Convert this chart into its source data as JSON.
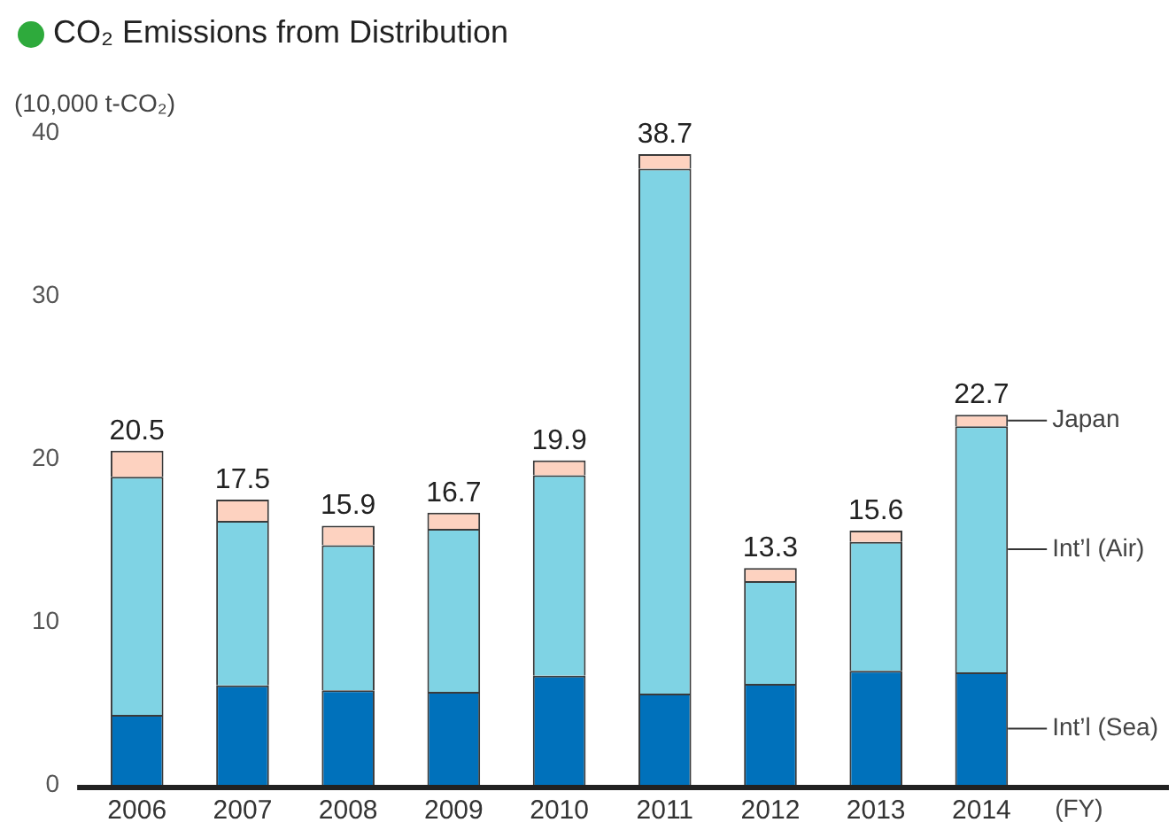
{
  "chart_data": {
    "type": "bar",
    "title": "CO₂ Emissions from Distribution",
    "ylabel": "(10,000 t-CO₂)",
    "xlabel": "(FY)",
    "stacked": true,
    "legend": false,
    "grid": false,
    "categories": [
      "2006",
      "2007",
      "2008",
      "2009",
      "2010",
      "2011",
      "2012",
      "2013",
      "2014"
    ],
    "series": [
      {
        "name": "Int’l (Sea)",
        "color": "#0071bb",
        "values": [
          4.3,
          6.1,
          5.8,
          5.7,
          6.7,
          5.6,
          6.2,
          7.0,
          6.9
        ]
      },
      {
        "name": "Int’l (Air)",
        "color": "#7fd3e4",
        "values": [
          14.6,
          10.1,
          8.9,
          10.0,
          12.3,
          32.2,
          6.3,
          7.9,
          15.1
        ]
      },
      {
        "name": "Japan",
        "color": "#fdd2c0",
        "values": [
          1.6,
          1.3,
          1.2,
          1.0,
          0.9,
          0.9,
          0.8,
          0.7,
          0.7
        ]
      }
    ],
    "totals": [
      "20.5",
      "17.5",
      "15.9",
      "16.7",
      "19.9",
      "38.7",
      "13.3",
      "15.6",
      "22.7"
    ],
    "ylim": [
      0,
      40
    ],
    "yticks": [
      0,
      10,
      20,
      30,
      40
    ]
  }
}
